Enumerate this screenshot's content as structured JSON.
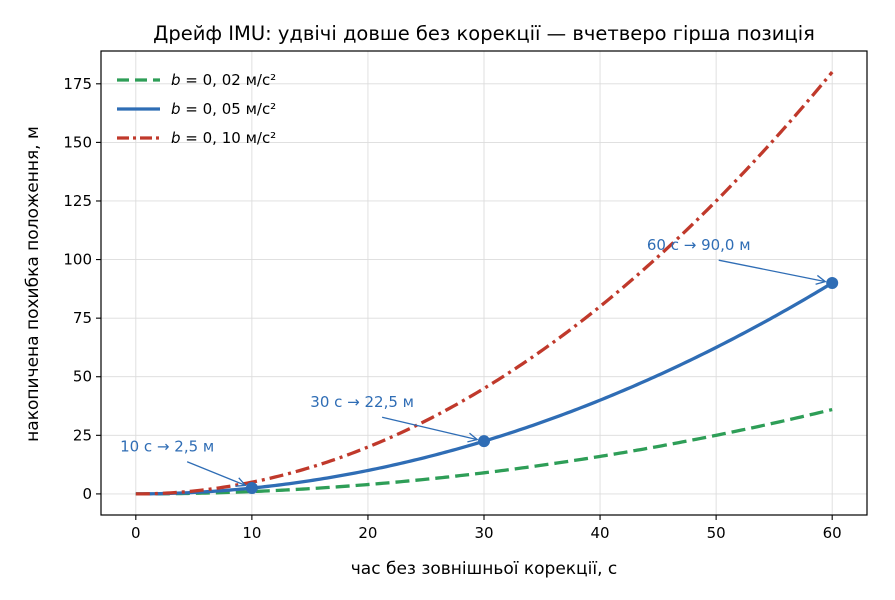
{
  "chart_data": {
    "type": "line",
    "title": "Дрейф IMU: удвічі довше без корекції — вчетверо гірша позиція",
    "xlabel": "час без зовнішньої корекції, с",
    "ylabel": "накопичена похибка положення, м",
    "xlim": [
      -3,
      63
    ],
    "ylim": [
      -9,
      189
    ],
    "xticks": [
      0,
      10,
      20,
      30,
      40,
      50,
      60
    ],
    "yticks": [
      0,
      25,
      50,
      75,
      100,
      125,
      150,
      175
    ],
    "grid": true,
    "legend_position": "top-left",
    "series": [
      {
        "name": "b = 0,02 м/с²",
        "legend_var": "b",
        "legend_rest": " = 0, 02 м/с²",
        "bias": 0.02,
        "color": "#2e9e57",
        "style": "dashed",
        "x_range": [
          0,
          60
        ]
      },
      {
        "name": "b = 0,05 м/с²",
        "legend_var": "b",
        "legend_rest": " = 0, 05 м/с²",
        "bias": 0.05,
        "color": "#2f6db5",
        "style": "solid",
        "x_range": [
          0,
          60
        ]
      },
      {
        "name": "b = 0,10 м/с²",
        "legend_var": "b",
        "legend_rest": " = 0, 10 м/с²",
        "bias": 0.1,
        "color": "#c0392b",
        "style": "dashdot",
        "x_range": [
          0,
          60
        ]
      }
    ],
    "markers": [
      {
        "x": 10,
        "y": 2.5
      },
      {
        "x": 30,
        "y": 22.5
      },
      {
        "x": 60,
        "y": 90
      }
    ],
    "annotations": [
      {
        "text": "10 с → 2,5 м",
        "x": 10,
        "y": 2.5,
        "text_x": 2.7,
        "text_y": 18
      },
      {
        "text": "30 с → 22,5 м",
        "x": 30,
        "y": 22.5,
        "text_x": 19.5,
        "text_y": 37
      },
      {
        "text": "60 с → 90,0 м",
        "x": 60,
        "y": 90,
        "text_x": 48.5,
        "text_y": 104
      }
    ],
    "annotation_color": "#2f6db5"
  }
}
